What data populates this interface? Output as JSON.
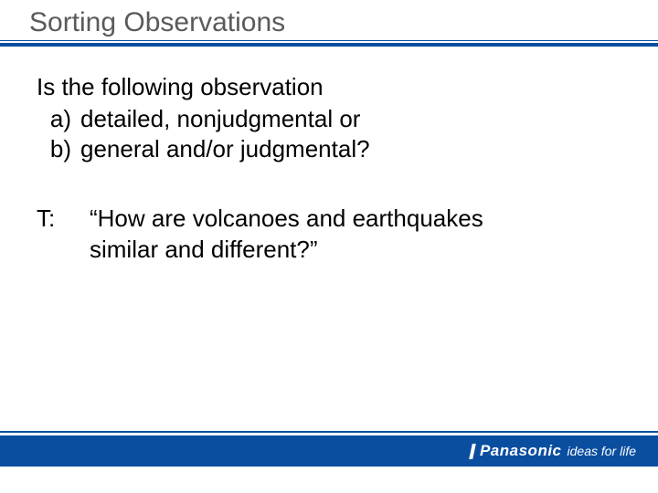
{
  "title": "Sorting Observations",
  "question": "Is the following observation",
  "options": [
    {
      "letter": "a)",
      "text": "detailed, nonjudgmental or"
    },
    {
      "letter": "b)",
      "text": "general and/or judgmental?"
    }
  ],
  "tprefix": "T:",
  "tline1": "“How are volcanoes and earthquakes",
  "tline2": "similar and different?”",
  "brand_main": "Panasonic",
  "brand_tag": "ideas for life",
  "colors": {
    "accent": "#0a4ea0",
    "title_text": "#5a5a5a",
    "body_text": "#000000",
    "brand_text": "#ffffff",
    "background": "#ffffff"
  }
}
